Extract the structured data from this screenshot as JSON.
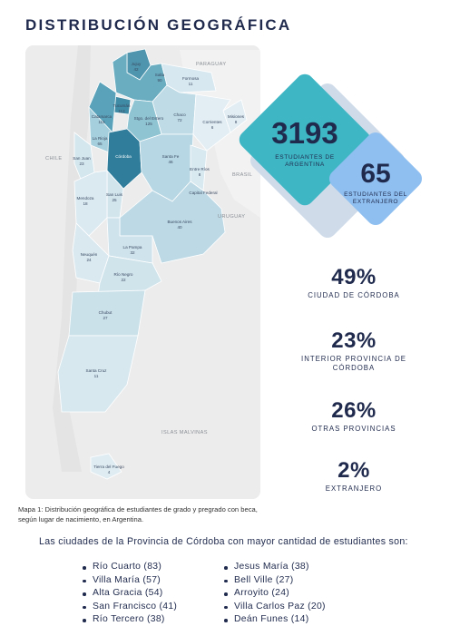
{
  "title": "DISTRIBUCIÓN GEOGRÁFICA",
  "colors": {
    "navy": "#1f2a4d",
    "teal": "#3fb6c4",
    "light_blue": "#8fbff0",
    "pale_blue": "#cfdbe9"
  },
  "map": {
    "countries": [
      "PARAGUAY",
      "BRASIL",
      "URUGUAY",
      "CHILE",
      "ISLAS MALVINAS"
    ],
    "provinces": [
      {
        "name": "Jujuy",
        "value": "42"
      },
      {
        "name": "Salta",
        "value": "90"
      },
      {
        "name": "Formosa",
        "value": "11"
      },
      {
        "name": "Chaco",
        "value": "72"
      },
      {
        "name": "Misiones",
        "value": "8"
      },
      {
        "name": "Tucumán",
        "value": "112"
      },
      {
        "name": "Catamarca",
        "value": "115"
      },
      {
        "name": "Santiago del Estero",
        "value": "125"
      },
      {
        "name": "Corrientes",
        "value": "6"
      },
      {
        "name": "La Rioja",
        "value": "65"
      },
      {
        "name": "Santa Fe",
        "value": "46"
      },
      {
        "name": "Entre Ríos",
        "value": "8"
      },
      {
        "name": "San Juan",
        "value": "23"
      },
      {
        "name": "San Luis",
        "value": "25"
      },
      {
        "name": "Mendoza",
        "value": "18"
      },
      {
        "name": "Capital Federal",
        "value": ""
      },
      {
        "name": "Buenos Aires",
        "value": "40"
      },
      {
        "name": "La Pampa",
        "value": "32"
      },
      {
        "name": "Neuquén",
        "value": "24"
      },
      {
        "name": "Río Negro",
        "value": "22"
      },
      {
        "name": "Chubut",
        "value": "27"
      },
      {
        "name": "Santa Cruz",
        "value": "11"
      },
      {
        "name": "Tierra del Fuego",
        "value": "4"
      }
    ]
  },
  "map_caption": "Mapa 1: Distribución geográfica de estudiantes de grado y pregrado con beca, según lugar de nacimiento, en Argentina.",
  "stats": {
    "argentina": {
      "value": "3193",
      "label_line1": "ESTUDIANTES DE",
      "label_line2": "ARGENTINA"
    },
    "extranjero": {
      "value": "65",
      "label_line1": "ESTUDIANTES DEL",
      "label_line2": "EXTRANJERO"
    }
  },
  "percentages": [
    {
      "value": "49%",
      "label": "CIUDAD DE CÓRDOBA"
    },
    {
      "value": "23%",
      "label": "INTERIOR PROVINCIA DE CÓRDOBA"
    },
    {
      "value": "26%",
      "label": "OTRAS PROVINCIAS"
    },
    {
      "value": "2%",
      "label": "EXTRANJERO"
    }
  ],
  "cities_intro": "Las ciudades de la Provincia de Córdoba con mayor cantidad de estudiantes son:",
  "cities_left": [
    "Río Cuarto (83)",
    "Villa María (57)",
    "Alta Gracia (54)",
    "San Francisco (41)",
    "Río Tercero (38)"
  ],
  "cities_right": [
    "Jesus María (38)",
    "Bell Ville (27)",
    "Arroyito (24)",
    "Villa Carlos Paz (20)",
    "Deán Funes (14)"
  ]
}
